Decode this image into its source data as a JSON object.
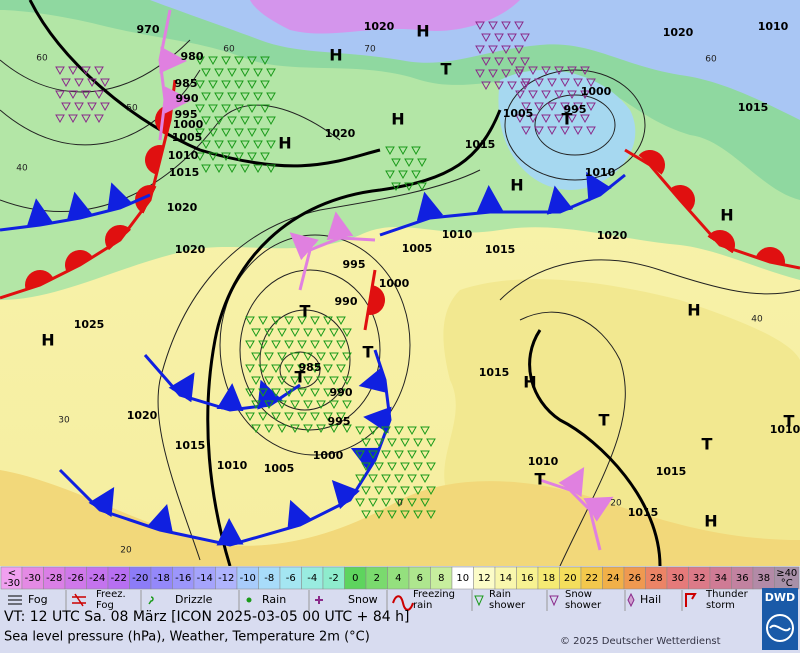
{
  "map": {
    "isobar_labels": [
      "970",
      "980",
      "985",
      "990",
      "995",
      "1000",
      "1005",
      "1010",
      "1015",
      "1020",
      "1020",
      "1025",
      "1020",
      "1015",
      "1010",
      "1005",
      "1000",
      "995",
      "990",
      "985",
      "990",
      "995",
      "1000",
      "1005",
      "1010",
      "1015",
      "1020",
      "1015",
      "1020",
      "1020",
      "1020",
      "1010",
      "1015",
      "1000",
      "995",
      "1005",
      "1010",
      "1015",
      "1010",
      "1015",
      "1015",
      "1010"
    ],
    "pressure_centers": [
      "H",
      "H",
      "H",
      "H",
      "H",
      "H",
      "H",
      "T",
      "T",
      "T",
      "T",
      "T",
      "H",
      "H",
      "H",
      "T",
      "T",
      "T",
      "T"
    ],
    "temperature_labels": [
      "60",
      "40",
      "30",
      "20",
      "0",
      "20",
      "40",
      "60",
      "70",
      "60",
      "50"
    ]
  },
  "temperature_scale": {
    "below_label": [
      "<",
      "-30"
    ],
    "values": [
      -30,
      -28,
      -26,
      -24,
      -22,
      -20,
      -18,
      -16,
      -14,
      -12,
      -10,
      -8,
      -6,
      -4,
      -2,
      0,
      2,
      4,
      6,
      8,
      10,
      12,
      14,
      16,
      18,
      20,
      22,
      24,
      26,
      28,
      30,
      32,
      34,
      36,
      38
    ],
    "colors": [
      "#e48ae4",
      "#da7fe6",
      "#cf78ea",
      "#c473ee",
      "#b76ff2",
      "#8c7cf7",
      "#9488fa",
      "#9c96fb",
      "#a5a4fc",
      "#afb4fd",
      "#a8ccfb",
      "#a8dcfa",
      "#a4e6f2",
      "#99ece0",
      "#8eeccd",
      "#5ed45e",
      "#7ada6e",
      "#94e07e",
      "#aee68e",
      "#c7ee9e",
      "#ffffff",
      "#fcfcc8",
      "#f9f7ad",
      "#f7f291",
      "#f5ea73",
      "#f4de5c",
      "#f3c84c",
      "#f1b048",
      "#ef9950",
      "#ec8466",
      "#e67a7a",
      "#dc7a88",
      "#cf7b95",
      "#c282a0",
      "#b38aa7"
    ],
    "above_label": [
      "≥40",
      "°C"
    ]
  },
  "weather_legend": [
    [
      "Fog"
    ],
    [
      "Freez.",
      "Fog"
    ],
    [
      "Drizzle"
    ],
    [
      "Rain"
    ],
    [
      "Snow"
    ],
    [
      "Freezing",
      "rain"
    ],
    [
      "Rain",
      "shower"
    ],
    [
      "Snow",
      "shower"
    ],
    [
      "Hail"
    ],
    [
      "Thunder",
      "storm"
    ]
  ],
  "footer": {
    "valid_time": "VT: 12 UTC Sa.  08 März [ICON 2025-03-05  00 UTC + 84 h]",
    "description": "Sea level pressure (hPa), Weather, Temperature 2m (°C)",
    "copyright": "© 2025 Deutscher Wetterdienst",
    "logo": "DWD"
  }
}
